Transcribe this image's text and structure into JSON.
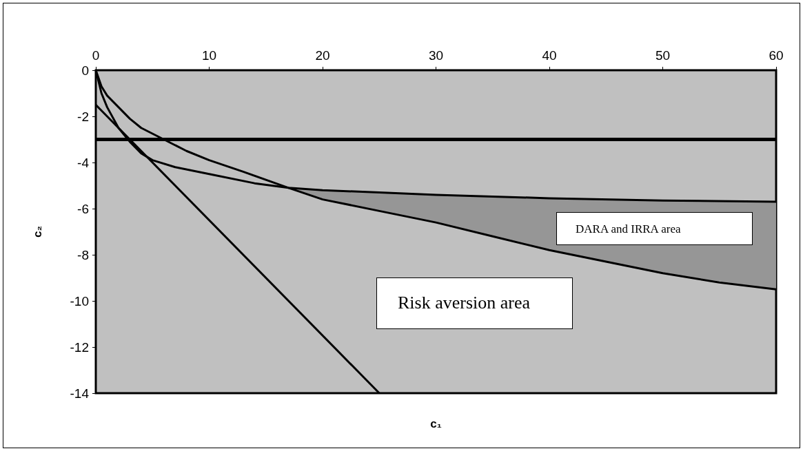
{
  "chart_data": {
    "type": "line",
    "xlabel": "c₁",
    "ylabel": "c₂",
    "xlim": [
      0,
      60
    ],
    "xticks": [
      0,
      10,
      20,
      30,
      40,
      50,
      60
    ],
    "ylim": [
      -14,
      0
    ],
    "yticks": [
      -14,
      -12,
      -10,
      -8,
      -6,
      -4,
      -2,
      0
    ],
    "grid": false,
    "marker": "none",
    "line_style": "solid",
    "series": [
      {
        "color": "#000000",
        "x": [
          0,
          0.5,
          1,
          2,
          3,
          4,
          6,
          8,
          10,
          13,
          17,
          20,
          25,
          30,
          35,
          40,
          45,
          50,
          55,
          60
        ],
        "values": [
          0,
          -0.7,
          -1.1,
          -1.6,
          -2.1,
          -2.5,
          -3,
          -3.5,
          -3.9,
          -4.4,
          -5.1,
          -5.6,
          -6.1,
          -6.6,
          -7.2,
          -7.8,
          -8.3,
          -8.8,
          -9.2,
          -9.5
        ]
      },
      {
        "color": "#000000",
        "x": [
          0,
          0.5,
          1,
          2,
          3,
          4,
          5,
          7,
          10,
          14,
          17,
          20,
          25,
          30,
          40,
          50,
          60
        ],
        "values": [
          0,
          -1,
          -1.6,
          -2.5,
          -3.1,
          -3.6,
          -3.9,
          -4.2,
          -4.5,
          -4.9,
          -5.1,
          -5.2,
          -5.3,
          -5.4,
          -5.55,
          -5.65,
          -5.7
        ],
        "lower": [
          null,
          null,
          null,
          null,
          null,
          null,
          null,
          null,
          null,
          null,
          -5.1,
          -5.6,
          -6.1,
          -6.6,
          -7.8,
          -8.8,
          -9.5
        ],
        "upper": [
          null,
          null,
          null,
          null,
          null,
          null,
          null,
          null,
          null,
          null,
          -5.1,
          -5.2,
          -5.3,
          -5.4,
          -5.55,
          -5.65,
          -5.7
        ]
      },
      {
        "color": "#000000",
        "x": [
          0,
          25
        ],
        "values": [
          -1.5,
          -14
        ]
      }
    ],
    "ref_lines": [
      {
        "axis": "y",
        "value": -3,
        "color": "#000000"
      }
    ],
    "annotations": [
      "Risk aversion area",
      "DARA and IRRA area"
    ]
  }
}
